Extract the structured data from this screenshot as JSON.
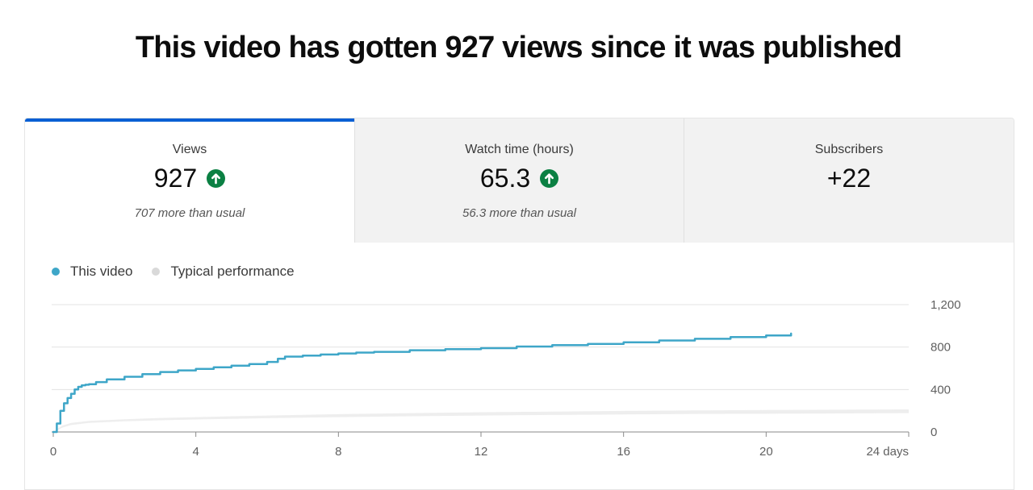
{
  "page": {
    "title": "This video has gotten 927 views since it was published"
  },
  "tabs": [
    {
      "label": "Views",
      "value": "927",
      "trend_icon": "arrow-up-circle-icon",
      "note": "707 more than usual",
      "selected": true
    },
    {
      "label": "Watch time (hours)",
      "value": "65.3",
      "trend_icon": "arrow-up-circle-icon",
      "note": "56.3 more than usual",
      "selected": false
    },
    {
      "label": "Subscribers",
      "value": "+22",
      "trend_icon": "",
      "note": "",
      "selected": false
    }
  ],
  "colors": {
    "accent": "#065fd4",
    "trend_up": "#0b8043",
    "this_video": "#3ea6c8",
    "typical": "#d9d9d9"
  },
  "legend": {
    "this_video": "This video",
    "typical": "Typical performance"
  },
  "chart_data": {
    "type": "line",
    "x_tick_labels": [
      "0",
      "4",
      "8",
      "12",
      "16",
      "20",
      "24 days"
    ],
    "y_tick_labels": [
      "0",
      "400",
      "800",
      "1,200"
    ],
    "xlim": [
      0,
      24
    ],
    "ylim": [
      0,
      1200
    ],
    "grid": true,
    "legend_position": "top-left",
    "series": [
      {
        "name": "This video",
        "x": [
          0,
          0.1,
          0.2,
          0.3,
          0.4,
          0.5,
          0.6,
          0.7,
          0.8,
          0.9,
          1.0,
          1.2,
          1.5,
          2,
          2.5,
          3,
          3.5,
          4,
          4.5,
          5,
          5.5,
          6,
          6.3,
          6.5,
          7,
          7.5,
          8,
          8.5,
          9,
          10,
          11,
          12,
          13,
          14,
          15,
          16,
          17,
          18,
          19,
          20,
          20.7
        ],
        "y": [
          0,
          80,
          200,
          270,
          320,
          360,
          400,
          425,
          440,
          445,
          450,
          470,
          495,
          520,
          545,
          565,
          580,
          595,
          610,
          625,
          640,
          660,
          690,
          710,
          720,
          730,
          740,
          748,
          755,
          770,
          780,
          790,
          805,
          818,
          830,
          845,
          862,
          878,
          895,
          910,
          927
        ]
      },
      {
        "name": "Typical performance",
        "x": [
          0,
          0.25,
          0.5,
          1,
          2,
          3,
          4,
          5,
          6,
          7,
          8,
          10,
          12,
          14,
          16,
          18,
          20,
          22,
          24
        ],
        "y_low": [
          0,
          40,
          65,
          85,
          100,
          110,
          118,
          124,
          130,
          135,
          140,
          148,
          155,
          160,
          165,
          170,
          172,
          175,
          178
        ],
        "y_high": [
          0,
          60,
          85,
          105,
          120,
          132,
          140,
          148,
          155,
          161,
          168,
          178,
          186,
          192,
          198,
          203,
          207,
          210,
          213
        ]
      }
    ]
  }
}
